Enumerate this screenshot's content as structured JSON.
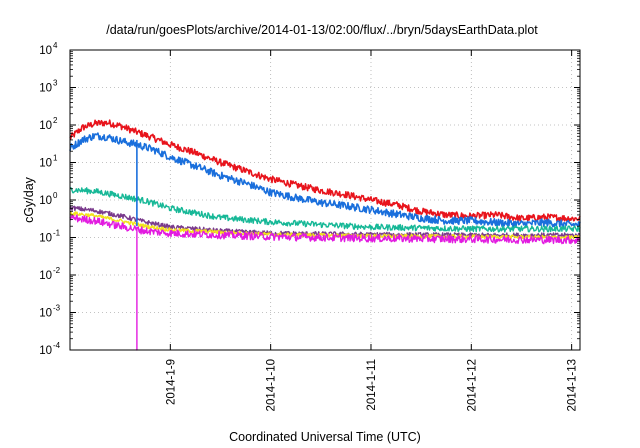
{
  "chart_data": {
    "type": "line",
    "title": "/data/run/goesPlots/archive/2014-01-13/02:00/flux/../bryn/5daysEarthData.plot",
    "xlabel": "Coordinated Universal Time (UTC)",
    "ylabel": "cGy/day",
    "yscale": "log",
    "ylim": [
      0.0001,
      10000
    ],
    "xlim": [
      "2014-01-08T00:00",
      "2014-01-13T02:00"
    ],
    "grid": true,
    "legend": "none",
    "x_ticks": [
      "2014-1-9",
      "2014-1-10",
      "2014-1-11",
      "2014-1-12",
      "2014-1-13"
    ],
    "y_ticks": [
      {
        "base": "10",
        "exp": "-4",
        "value": 0.0001
      },
      {
        "base": "10",
        "exp": "-3",
        "value": 0.001
      },
      {
        "base": "10",
        "exp": "-2",
        "value": 0.01
      },
      {
        "base": "10",
        "exp": "-1",
        "value": 0.1
      },
      {
        "base": "10",
        "exp": "0",
        "value": 1
      },
      {
        "base": "10",
        "exp": "1",
        "value": 10
      },
      {
        "base": "10",
        "exp": "2",
        "value": 100
      },
      {
        "base": "10",
        "exp": "3",
        "value": 1000
      },
      {
        "base": "10",
        "exp": "4",
        "value": 10000
      }
    ],
    "series": [
      {
        "color": "#e8141c",
        "noise": 0.09,
        "points": [
          [
            "2014-01-08T00:00",
            45
          ],
          [
            "2014-01-08T03:00",
            85
          ],
          [
            "2014-01-08T06:00",
            110
          ],
          [
            "2014-01-08T09:00",
            115
          ],
          [
            "2014-01-08T12:00",
            95
          ],
          [
            "2014-01-08T16:00",
            65
          ],
          [
            "2014-01-08T20:00",
            45
          ],
          [
            "2014-01-09T00:00",
            30
          ],
          [
            "2014-01-09T06:00",
            18
          ],
          [
            "2014-01-09T12:00",
            10
          ],
          [
            "2014-01-09T18:00",
            6
          ],
          [
            "2014-01-10T00:00",
            3.6
          ],
          [
            "2014-01-10T06:00",
            2.5
          ],
          [
            "2014-01-10T12:00",
            1.8
          ],
          [
            "2014-01-10T18:00",
            1.4
          ],
          [
            "2014-01-11T00:00",
            1.0
          ],
          [
            "2014-01-11T06:00",
            0.75
          ],
          [
            "2014-01-11T12:00",
            0.5
          ],
          [
            "2014-01-11T18:00",
            0.4
          ],
          [
            "2014-01-12T00:00",
            0.37
          ],
          [
            "2014-01-12T06:00",
            0.4
          ],
          [
            "2014-01-12T12:00",
            0.32
          ],
          [
            "2014-01-12T18:00",
            0.35
          ],
          [
            "2014-01-13T00:00",
            0.32
          ],
          [
            "2014-01-13T02:00",
            0.32
          ]
        ]
      },
      {
        "color": "#1a6fdc",
        "noise": 0.1,
        "points": [
          [
            "2014-01-08T00:00",
            24
          ],
          [
            "2014-01-08T03:00",
            40
          ],
          [
            "2014-01-08T06:00",
            52
          ],
          [
            "2014-01-08T09:00",
            48
          ],
          [
            "2014-01-08T12:00",
            38
          ],
          [
            "2014-01-08T16:00",
            30
          ],
          [
            "2014-01-08T20:00",
            22
          ],
          [
            "2014-01-09T00:00",
            14
          ],
          [
            "2014-01-09T06:00",
            8
          ],
          [
            "2014-01-09T12:00",
            4.5
          ],
          [
            "2014-01-09T18:00",
            2.8
          ],
          [
            "2014-01-10T00:00",
            1.6
          ],
          [
            "2014-01-10T06:00",
            1.15
          ],
          [
            "2014-01-10T12:00",
            0.85
          ],
          [
            "2014-01-10T18:00",
            0.7
          ],
          [
            "2014-01-11T00:00",
            0.55
          ],
          [
            "2014-01-11T06:00",
            0.42
          ],
          [
            "2014-01-11T12:00",
            0.33
          ],
          [
            "2014-01-11T18:00",
            0.28
          ],
          [
            "2014-01-12T00:00",
            0.28
          ],
          [
            "2014-01-12T06:00",
            0.25
          ],
          [
            "2014-01-12T12:00",
            0.23
          ],
          [
            "2014-01-12T18:00",
            0.25
          ],
          [
            "2014-01-13T00:00",
            0.22
          ],
          [
            "2014-01-13T02:00",
            0.22
          ]
        ]
      },
      {
        "color": "#17b897",
        "noise": 0.08,
        "points": [
          [
            "2014-01-08T00:00",
            1.9
          ],
          [
            "2014-01-08T06:00",
            1.7
          ],
          [
            "2014-01-08T12:00",
            1.3
          ],
          [
            "2014-01-08T18:00",
            0.95
          ],
          [
            "2014-01-09T00:00",
            0.6
          ],
          [
            "2014-01-09T06:00",
            0.45
          ],
          [
            "2014-01-09T12:00",
            0.34
          ],
          [
            "2014-01-10T00:00",
            0.26
          ],
          [
            "2014-01-10T12:00",
            0.22
          ],
          [
            "2014-01-11T00:00",
            0.19
          ],
          [
            "2014-01-12T00:00",
            0.17
          ],
          [
            "2014-01-13T02:00",
            0.17
          ]
        ]
      },
      {
        "color": "#7a3a8c",
        "noise": 0.06,
        "points": [
          [
            "2014-01-08T00:00",
            0.62
          ],
          [
            "2014-01-08T06:00",
            0.52
          ],
          [
            "2014-01-08T12:00",
            0.38
          ],
          [
            "2014-01-08T18:00",
            0.26
          ],
          [
            "2014-01-09T00:00",
            0.19
          ],
          [
            "2014-01-09T12:00",
            0.15
          ],
          [
            "2014-01-10T00:00",
            0.13
          ],
          [
            "2014-01-11T00:00",
            0.12
          ],
          [
            "2014-01-12T00:00",
            0.115
          ],
          [
            "2014-01-13T02:00",
            0.115
          ]
        ]
      },
      {
        "color": "#f2e21b",
        "noise": 0.05,
        "points": [
          [
            "2014-01-08T00:00",
            0.45
          ],
          [
            "2014-01-08T06:00",
            0.38
          ],
          [
            "2014-01-08T12:00",
            0.28
          ],
          [
            "2014-01-08T18:00",
            0.2
          ],
          [
            "2014-01-09T00:00",
            0.16
          ],
          [
            "2014-01-10T00:00",
            0.12
          ],
          [
            "2014-01-11T00:00",
            0.11
          ],
          [
            "2014-01-13T02:00",
            0.1
          ]
        ]
      },
      {
        "color": "#e21be0",
        "noise": 0.1,
        "dropout": "2014-01-08T16:00",
        "points": [
          [
            "2014-01-08T00:00",
            0.34
          ],
          [
            "2014-01-08T06:00",
            0.28
          ],
          [
            "2014-01-08T12:00",
            0.2
          ],
          [
            "2014-01-08T18:00",
            0.15
          ],
          [
            "2014-01-09T00:00",
            0.13
          ],
          [
            "2014-01-10T00:00",
            0.105
          ],
          [
            "2014-01-11T00:00",
            0.095
          ],
          [
            "2014-01-12T00:00",
            0.09
          ],
          [
            "2014-01-13T02:00",
            0.085
          ]
        ]
      }
    ]
  }
}
